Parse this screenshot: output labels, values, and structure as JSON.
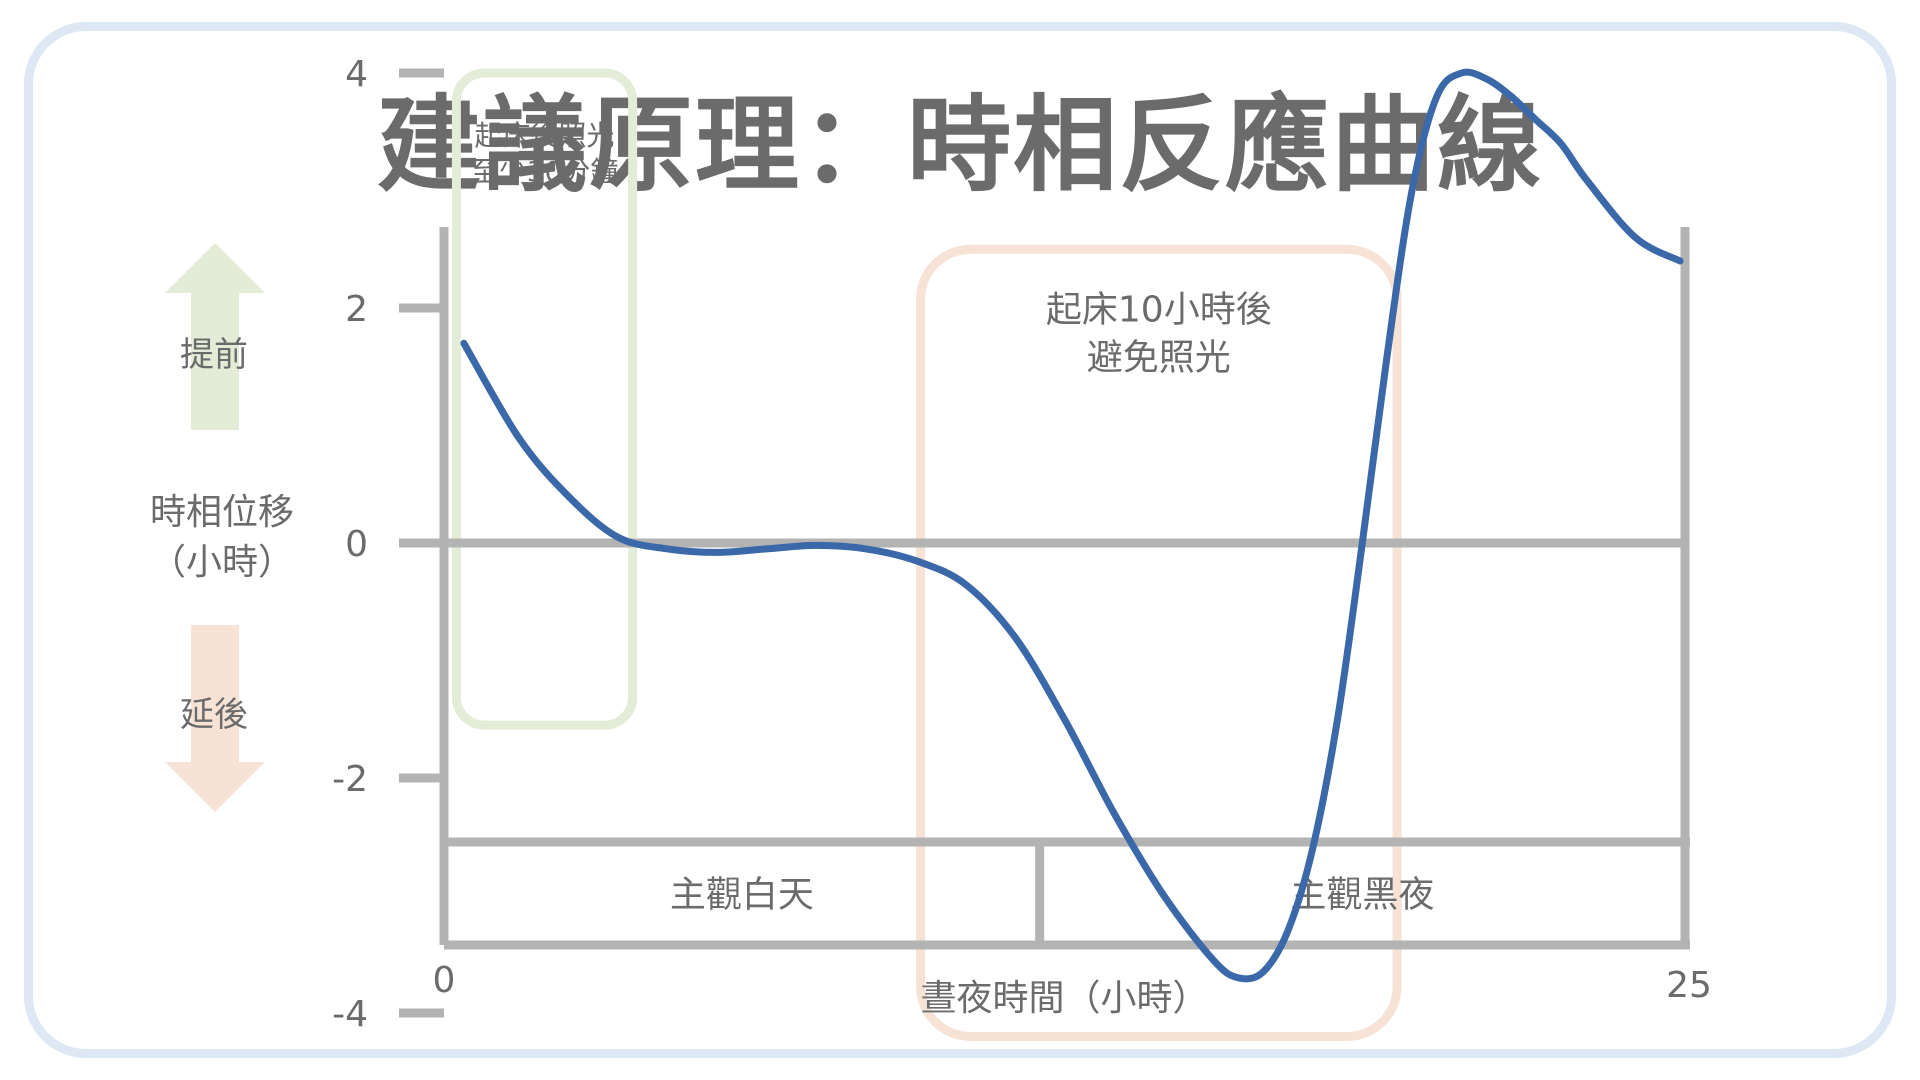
{
  "title": "建議原理：時相反應曲線",
  "chart_data": {
    "type": "line",
    "title": "建議原理：時相反應曲線",
    "xlabel": "晝夜時間（小時）",
    "ylabel": "時相位移",
    "ylabel_unit": "（小時）",
    "xlim": [
      0,
      25
    ],
    "ylim": [
      -5.2,
      5.3
    ],
    "x_tick_labels": [
      "0",
      "25"
    ],
    "y_ticks": [
      4,
      2,
      0,
      -2,
      -4
    ],
    "y_tick_labels": [
      "4",
      "2",
      "0",
      "-2",
      "-4"
    ],
    "grid": false,
    "series": [
      {
        "color": "#3a68a8",
        "x": [
          0.4,
          1.5,
          2.5,
          3.5,
          4.5,
          5.5,
          6.5,
          7.5,
          8.5,
          9.5,
          10.5,
          11.5,
          12.5,
          13.5,
          14.5,
          15.5,
          16.0,
          16.5,
          17.0,
          17.5,
          18.0,
          18.5,
          19.0,
          19.5,
          20.0,
          20.5,
          21.0,
          21.5,
          22.0,
          22.5,
          23.0,
          24.0,
          24.9
        ],
        "y": [
          1.7,
          0.9,
          0.4,
          0.05,
          -0.05,
          -0.08,
          -0.05,
          -0.02,
          -0.05,
          -0.15,
          -0.35,
          -0.8,
          -1.5,
          -2.3,
          -3.0,
          -3.55,
          -3.7,
          -3.65,
          -3.3,
          -2.6,
          -1.5,
          0.0,
          1.6,
          3.0,
          3.8,
          4.0,
          3.95,
          3.8,
          3.6,
          3.4,
          3.1,
          2.6,
          2.4
        ]
      }
    ],
    "annotations": [
      {
        "text_lines": [
          "起床後照光",
          "至少30分鐘"
        ],
        "color": "#e3ecd6",
        "x_range": [
          0.25,
          3.8
        ],
        "y_range": [
          -1.55,
          4.0
        ]
      },
      {
        "text_lines": [
          "起床10小時後",
          "避免照光"
        ],
        "color": "#f7e3d6",
        "x_range": [
          9.6,
          19.2
        ],
        "y_range": [
          -4.2,
          2.5
        ]
      }
    ],
    "bands": [
      "主觀白天",
      "主觀黑夜"
    ],
    "band_split_x": 12,
    "indicators": [
      {
        "label": "提前",
        "direction": "up",
        "color": "#e3ecd6"
      },
      {
        "label": "延後",
        "direction": "down",
        "color": "#f7e3d6"
      }
    ]
  }
}
